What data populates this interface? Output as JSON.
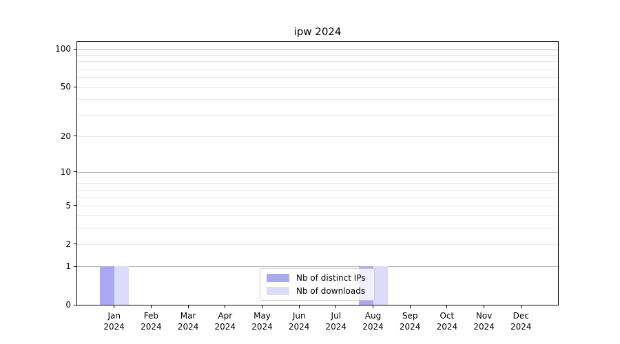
{
  "title": "ipw 2024",
  "chart_data": {
    "type": "bar",
    "title": "ipw 2024",
    "categories": [
      "Jan 2024",
      "Feb 2024",
      "Mar 2024",
      "Apr 2024",
      "May 2024",
      "Jun 2024",
      "Jul 2024",
      "Aug 2024",
      "Sep 2024",
      "Oct 2024",
      "Nov 2024",
      "Dec 2024"
    ],
    "series": [
      {
        "name": "Nb of distinct IPs",
        "color": "#a9a9f3",
        "values": [
          1,
          0,
          0,
          0,
          0,
          0,
          0,
          1,
          0,
          0,
          0,
          0
        ]
      },
      {
        "name": "Nb of downloads",
        "color": "#dcdcfa",
        "values": [
          1,
          0,
          0,
          0,
          0,
          0,
          0,
          1,
          0,
          0,
          0,
          0
        ]
      }
    ],
    "xlabel": "",
    "ylabel": "",
    "yscale": "log1p",
    "ylim": [
      0,
      114
    ],
    "y_tick_labels": [
      0,
      1,
      2,
      5,
      10,
      20,
      50,
      100
    ],
    "y_major_gridlines": [
      1,
      10,
      100
    ],
    "y_minor_gridlines": [
      2,
      3,
      4,
      5,
      6,
      7,
      8,
      9,
      20,
      30,
      40,
      50,
      60,
      70,
      80,
      90
    ],
    "grid": true,
    "legend_position": "lower center"
  },
  "colors": {
    "bar_distinct_ips": "#a9a9f3",
    "bar_downloads": "#dcdcfa",
    "major_grid": "#b0b0b0",
    "minor_grid": "#e9e9e9",
    "axis": "#000000",
    "legend_border": "#cccccc",
    "background": "#ffffff"
  }
}
